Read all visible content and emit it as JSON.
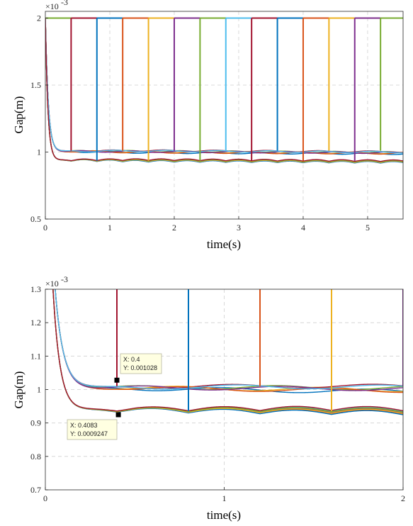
{
  "chart_data": [
    {
      "type": "line",
      "id": "top",
      "xlabel": "time(s)",
      "ylabel": "Gap(m)",
      "y_multiplier": "×10",
      "y_exponent": "-3",
      "xlim": [
        0,
        5.55
      ],
      "ylim": [
        0.5,
        2.05
      ],
      "xticks": [
        "0",
        "1",
        "2",
        "3",
        "4",
        "5"
      ],
      "yticks": [
        "0.5",
        "1",
        "1.5",
        "2"
      ],
      "grid": true,
      "series_colors": [
        "#0072BD",
        "#D95319",
        "#EDB120",
        "#7E2F8E",
        "#77AC30",
        "#4DBEEE",
        "#A2142F"
      ],
      "num_series": 14,
      "switch_times": [
        0.4,
        0.8,
        1.2,
        1.6,
        2.0,
        2.4,
        2.8,
        3.2,
        3.6,
        4.0,
        4.4,
        4.8,
        5.2
      ],
      "switch_colors": [
        "#A2142F",
        "#0072BD",
        "#D95319",
        "#EDB120",
        "#7E2F8E",
        "#77AC30",
        "#4DBEEE",
        "#A2142F",
        "#0072BD",
        "#D95319",
        "#EDB120",
        "#7E2F8E",
        "#77AC30"
      ],
      "initial_gap": 2.0,
      "upper_branch_level": 1.01,
      "lower_branch_level": 0.935
    },
    {
      "type": "line",
      "id": "bottom",
      "xlabel": "time(s)",
      "ylabel": "Gap(m)",
      "y_multiplier": "×10",
      "y_exponent": "-3",
      "xlim": [
        0,
        2
      ],
      "ylim": [
        0.7,
        1.3
      ],
      "xticks": [
        "0",
        "1",
        "2"
      ],
      "yticks": [
        "0.7",
        "0.8",
        "0.9",
        "1",
        "1.1",
        "1.2",
        "1.3"
      ],
      "grid": true,
      "switch_times": [
        0.4,
        0.8,
        1.2,
        1.6,
        2.0
      ],
      "switch_colors": [
        "#A2142F",
        "#0072BD",
        "#D95319",
        "#EDB120",
        "#7E2F8E"
      ],
      "datatips": [
        {
          "x": 0.4,
          "y": 0.001028,
          "label_x": "X: 0.4",
          "label_y": "Y: 0.001028"
        },
        {
          "x": 0.4083,
          "y": 0.0009247,
          "label_x": "X: 0.4083",
          "label_y": "Y: 0.0009247"
        }
      ]
    }
  ]
}
